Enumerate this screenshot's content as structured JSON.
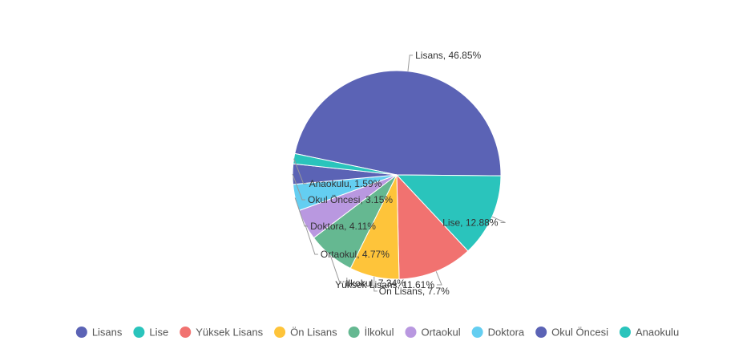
{
  "chart_data": {
    "type": "pie",
    "slices": [
      {
        "label": "Lisans",
        "value": 46.85,
        "display": "Lisans, 46.85%",
        "color": "#5b63b5"
      },
      {
        "label": "Lise",
        "value": 12.88,
        "display": "Lise, 12.88%",
        "color": "#2ac4bc"
      },
      {
        "label": "Yüksek Lisans",
        "value": 11.61,
        "display": "Yüksek Lisans, 11.61%",
        "color": "#f17270"
      },
      {
        "label": "Ön Lisans",
        "value": 7.7,
        "display": "Ön Lisans, 7.7%",
        "color": "#fec43a"
      },
      {
        "label": "İlkokul",
        "value": 7.34,
        "display": "İlkokul, 7.34%",
        "color": "#65b891"
      },
      {
        "label": "Ortaokul",
        "value": 4.77,
        "display": "Ortaokul, 4.77%",
        "color": "#b998e0"
      },
      {
        "label": "Doktora",
        "value": 4.11,
        "display": "Doktora, 4.11%",
        "color": "#64cef1"
      },
      {
        "label": "Okul Öncesi",
        "value": 3.15,
        "display": "Okul Öncesi, 3.15%",
        "color": "#5b63b5"
      },
      {
        "label": "Anaokulu",
        "value": 1.59,
        "display": "Anaokulu, 1.59%",
        "color": "#2ac4bc"
      }
    ],
    "legend_position": "bottom",
    "unit": "%"
  }
}
